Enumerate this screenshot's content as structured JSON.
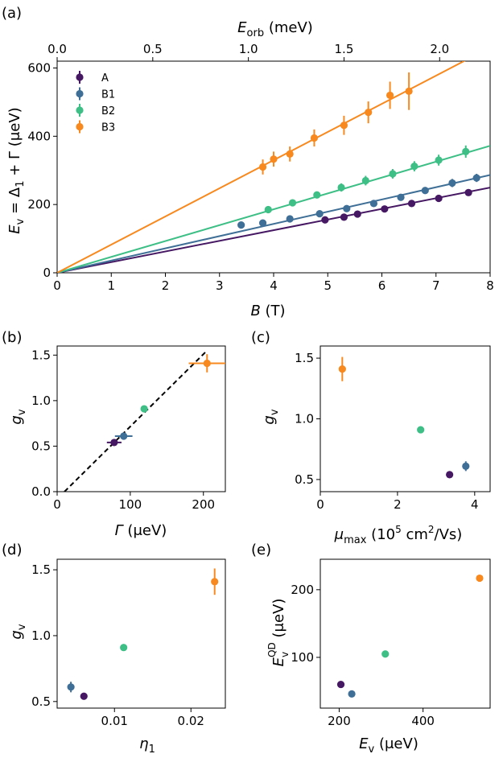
{
  "colors": {
    "A": "#461863",
    "B1": "#3f6f96",
    "B2": "#3dbf86",
    "B3": "#f7891e"
  },
  "chart_data": [
    {
      "id": "a",
      "type": "scatter",
      "panel_label": "(a)",
      "xlabel": "B (T)",
      "ylabel": "E_v = Δ_1 + Γ (μeV)",
      "x2label": "E_orb (meV)",
      "xlim": [
        0,
        8
      ],
      "ylim": [
        0,
        620
      ],
      "x2lim": [
        0,
        2.264
      ],
      "xticks": [
        0,
        1,
        2,
        3,
        4,
        5,
        6,
        7,
        8
      ],
      "yticks": [
        0,
        200,
        400,
        600
      ],
      "x2ticks": [
        0.0,
        0.5,
        1.0,
        1.5,
        2.0
      ],
      "legend": {
        "position": "top-left",
        "entries": [
          "A",
          "B1",
          "B2",
          "B3"
        ]
      },
      "grid": false,
      "series": [
        {
          "name": "A",
          "x": [
            4.95,
            5.3,
            5.55,
            6.05,
            6.55,
            7.05,
            7.6
          ],
          "y": [
            155,
            163,
            172,
            187,
            203,
            218,
            235
          ],
          "yerr": [
            8,
            8,
            8,
            8,
            8,
            8,
            8
          ],
          "fit": {
            "slope": 31.2,
            "intercept": 0
          }
        },
        {
          "name": "B1",
          "x": [
            3.4,
            3.8,
            4.3,
            4.85,
            5.35,
            5.85,
            6.35,
            6.8,
            7.3,
            7.75
          ],
          "y": [
            140,
            146,
            158,
            173,
            188,
            203,
            221,
            241,
            263,
            278
          ],
          "yerr": [
            8,
            8,
            8,
            8,
            8,
            8,
            8,
            10,
            12,
            12
          ],
          "fit": {
            "slope": 35.8,
            "intercept": 0
          }
        },
        {
          "name": "B2",
          "x": [
            3.9,
            4.35,
            4.8,
            5.25,
            5.7,
            6.2,
            6.6,
            7.05,
            7.55
          ],
          "y": [
            185,
            205,
            228,
            250,
            270,
            290,
            312,
            330,
            355
          ],
          "yerr": [
            10,
            10,
            10,
            12,
            14,
            14,
            15,
            16,
            18
          ],
          "fit": {
            "slope": 46.5,
            "intercept": 0
          }
        },
        {
          "name": "B3",
          "x": [
            3.8,
            4.0,
            4.3,
            4.75,
            5.3,
            5.75,
            6.15,
            6.5
          ],
          "y": [
            310,
            333,
            348,
            395,
            432,
            470,
            520,
            532
          ],
          "yerr": [
            22,
            22,
            22,
            25,
            28,
            32,
            40,
            55
          ],
          "fit": {
            "slope": 82.5,
            "intercept": 0
          }
        }
      ]
    },
    {
      "id": "b",
      "type": "scatter",
      "panel_label": "(b)",
      "xlabel": "Γ (μeV)",
      "ylabel": "g_v",
      "xlim": [
        0,
        230
      ],
      "ylim": [
        0,
        1.6
      ],
      "xticks": [
        0,
        100,
        200
      ],
      "yticks": [
        0.0,
        0.5,
        1.0,
        1.5
      ],
      "ytick_labels": [
        "0.0",
        "0.5",
        "1.0",
        "1.5"
      ],
      "dashed_line": {
        "x": [
          10,
          205
        ],
        "y": [
          0,
          1.55
        ]
      },
      "series": [
        {
          "name": "A",
          "x": [
            78
          ],
          "y": [
            0.54
          ],
          "xerr": [
            10
          ],
          "yerr": [
            0.03
          ]
        },
        {
          "name": "B1",
          "x": [
            91
          ],
          "y": [
            0.61
          ],
          "xerr": [
            12
          ],
          "yerr": [
            0.04
          ]
        },
        {
          "name": "B2",
          "x": [
            119
          ],
          "y": [
            0.91
          ],
          "xerr": [
            0
          ],
          "yerr": [
            0
          ]
        },
        {
          "name": "B3",
          "x": [
            205
          ],
          "y": [
            1.41
          ],
          "xerr": [
            25
          ],
          "yerr": [
            0.1
          ]
        }
      ]
    },
    {
      "id": "c",
      "type": "scatter",
      "panel_label": "(c)",
      "xlabel": "μ_max (10^5 cm^2/Vs)",
      "ylabel": "g_v",
      "xlim": [
        0,
        4.4
      ],
      "ylim": [
        0.4,
        1.6
      ],
      "xticks": [
        0,
        2,
        4
      ],
      "yticks": [
        0.5,
        1.0,
        1.5
      ],
      "ytick_labels": [
        "0.5",
        "1.0",
        "1.5"
      ],
      "series": [
        {
          "name": "A",
          "x": [
            3.35
          ],
          "y": [
            0.54
          ],
          "yerr": [
            0
          ]
        },
        {
          "name": "B1",
          "x": [
            3.77
          ],
          "y": [
            0.61
          ],
          "yerr": [
            0.04
          ]
        },
        {
          "name": "B2",
          "x": [
            2.6
          ],
          "y": [
            0.91
          ],
          "yerr": [
            0
          ]
        },
        {
          "name": "B3",
          "x": [
            0.57
          ],
          "y": [
            1.41
          ],
          "yerr": [
            0.1
          ]
        }
      ]
    },
    {
      "id": "d",
      "type": "scatter",
      "panel_label": "(d)",
      "xlabel": "η_1",
      "ylabel": "g_v",
      "xlim": [
        0.0025,
        0.0245
      ],
      "ylim": [
        0.45,
        1.58
      ],
      "xticks": [
        0.01,
        0.02
      ],
      "yticks": [
        0.5,
        1.0,
        1.5
      ],
      "ytick_labels": [
        "0.5",
        "1.0",
        "1.5"
      ],
      "xtick_labels": [
        "0.01",
        "0.02"
      ],
      "series": [
        {
          "name": "A",
          "x": [
            0.006
          ],
          "y": [
            0.54
          ],
          "yerr": [
            0
          ]
        },
        {
          "name": "B1",
          "x": [
            0.0043
          ],
          "y": [
            0.61
          ],
          "yerr": [
            0.04
          ]
        },
        {
          "name": "B2",
          "x": [
            0.0112
          ],
          "y": [
            0.91
          ],
          "yerr": [
            0
          ]
        },
        {
          "name": "B3",
          "x": [
            0.0231
          ],
          "y": [
            1.41
          ],
          "yerr": [
            0.1
          ]
        }
      ]
    },
    {
      "id": "e",
      "type": "scatter",
      "panel_label": "(e)",
      "xlabel": "E_v (μeV)",
      "ylabel": "E_v^QD (μeV)",
      "xlim": [
        155,
        560
      ],
      "ylim": [
        25,
        245
      ],
      "xticks": [
        200,
        400
      ],
      "yticks": [
        100,
        200
      ],
      "series": [
        {
          "name": "A",
          "x": [
            204
          ],
          "y": [
            60
          ]
        },
        {
          "name": "B1",
          "x": [
            230
          ],
          "y": [
            46
          ]
        },
        {
          "name": "B2",
          "x": [
            310
          ],
          "y": [
            105
          ]
        },
        {
          "name": "B3",
          "x": [
            535
          ],
          "y": [
            217
          ]
        }
      ]
    }
  ]
}
